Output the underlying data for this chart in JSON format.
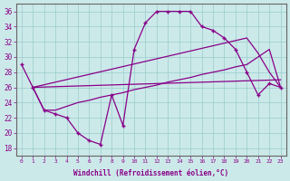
{
  "xlabel": "Windchill (Refroidissement éolien,°C)",
  "xlim": [
    -0.5,
    23.5
  ],
  "ylim": [
    17,
    37
  ],
  "yticks": [
    18,
    20,
    22,
    24,
    26,
    28,
    30,
    32,
    34,
    36
  ],
  "xticks": [
    0,
    1,
    2,
    3,
    4,
    5,
    6,
    7,
    8,
    9,
    10,
    11,
    12,
    13,
    14,
    15,
    16,
    17,
    18,
    19,
    20,
    21,
    22,
    23
  ],
  "background_color": "#cce9e9",
  "grid_color": "#99cccc",
  "line_color": "#880088",
  "series": [
    {
      "x": [
        0,
        1,
        2,
        3,
        4,
        5,
        6,
        7,
        8,
        9,
        10,
        11,
        12,
        13,
        14,
        15,
        16,
        17,
        18,
        19,
        20,
        21,
        22,
        23
      ],
      "y": [
        29,
        26,
        23,
        22.5,
        22,
        20,
        19,
        18.5,
        25,
        21,
        31,
        34.5,
        36,
        36,
        36,
        36,
        34,
        33.5,
        32.5,
        31,
        28,
        25,
        26.5,
        26
      ]
    },
    {
      "x": [
        1,
        23
      ],
      "y": [
        26,
        27
      ]
    },
    {
      "x": [
        1,
        20,
        21,
        22,
        23
      ],
      "y": [
        26,
        32.5,
        30.5,
        28,
        26
      ]
    },
    {
      "x": [
        1,
        2,
        3,
        4,
        5,
        6,
        7,
        8,
        9,
        10,
        11,
        12,
        13,
        14,
        15,
        16,
        17,
        18,
        19,
        20,
        21,
        22,
        23
      ],
      "y": [
        26,
        23,
        23,
        23.5,
        24,
        24.3,
        24.7,
        25,
        25.3,
        25.7,
        26,
        26.3,
        26.7,
        27,
        27.3,
        27.7,
        28,
        28.3,
        28.7,
        29,
        30,
        31,
        26
      ]
    }
  ]
}
